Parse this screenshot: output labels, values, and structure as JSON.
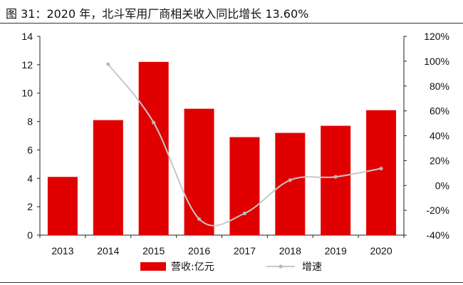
{
  "figure": {
    "title": "图 31：2020 年，北斗军用厂商相关收入同比增长 13.60%"
  },
  "chart_data": {
    "type": "bar",
    "categories": [
      "2013",
      "2014",
      "2015",
      "2016",
      "2017",
      "2018",
      "2019",
      "2020"
    ],
    "series": [
      {
        "name": "营收:亿元",
        "type": "bar",
        "axis": "left",
        "color": "#e00000",
        "values": [
          4.1,
          8.1,
          12.2,
          8.9,
          6.9,
          7.2,
          7.7,
          8.8
        ]
      },
      {
        "name": "增速",
        "type": "line",
        "axis": "right",
        "color": "#c8c8c8",
        "values": [
          null,
          97.6,
          50.6,
          -27.0,
          -22.5,
          4.3,
          6.9,
          13.6
        ]
      }
    ],
    "left_axis": {
      "ylim": [
        0,
        14
      ],
      "ticks": [
        "0",
        "2",
        "4",
        "6",
        "8",
        "10",
        "12",
        "14"
      ]
    },
    "right_axis": {
      "ylim": [
        -40,
        120
      ],
      "ticks": [
        "-40%",
        "-20%",
        "0%",
        "20%",
        "40%",
        "60%",
        "80%",
        "100%",
        "120%"
      ]
    },
    "legend_position": "bottom",
    "grid": false
  }
}
